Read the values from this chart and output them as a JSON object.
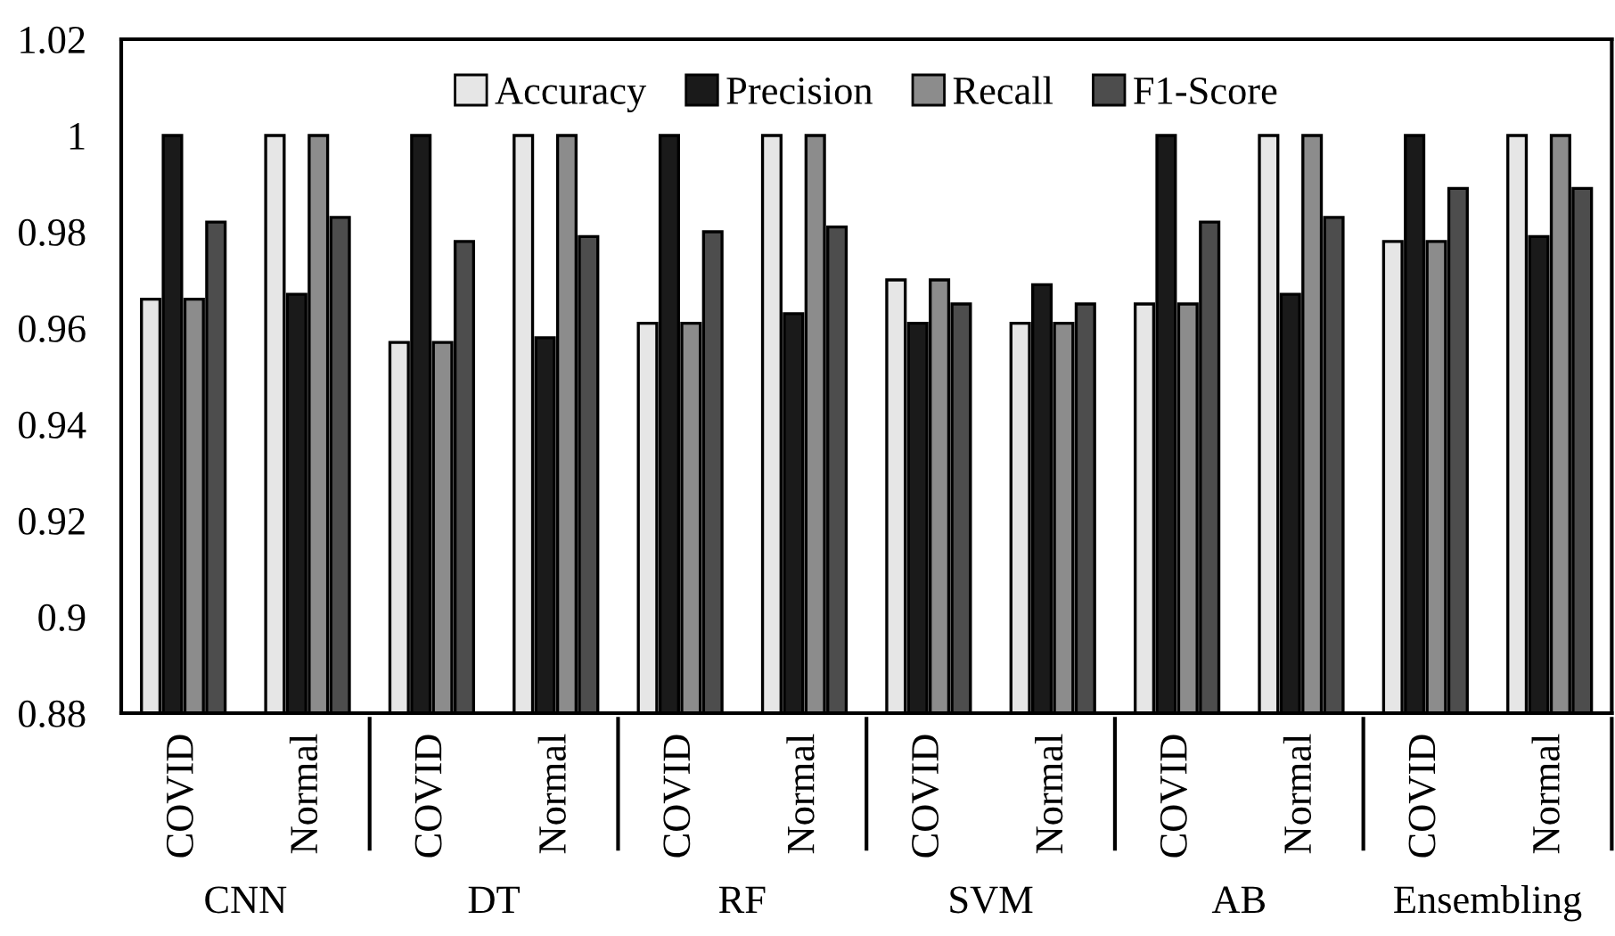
{
  "chart_data": {
    "type": "bar",
    "categories": [
      "COVID",
      "Normal",
      "COVID",
      "Normal",
      "COVID",
      "Normal",
      "COVID",
      "Normal",
      "COVID",
      "Normal",
      "COVID",
      "Normal"
    ],
    "annotations": [
      "CNN",
      "DT",
      "RF",
      "SVM",
      "AB",
      "Ensembling"
    ],
    "series": [
      {
        "name": "Accuracy",
        "color": "#e6e6e6",
        "values": [
          0.966,
          1,
          0.957,
          1,
          0.961,
          1,
          0.97,
          0.961,
          0.965,
          1,
          0.978,
          1
        ]
      },
      {
        "name": "Precision",
        "color": "#1a1a1a",
        "values": [
          1,
          0.967,
          1,
          0.958,
          1,
          0.963,
          0.961,
          0.969,
          1,
          0.967,
          1,
          0.979
        ]
      },
      {
        "name": "Recall",
        "color": "#8c8c8c",
        "values": [
          0.966,
          1,
          0.957,
          1,
          0.961,
          1,
          0.97,
          0.961,
          0.965,
          1,
          0.978,
          1
        ]
      },
      {
        "name": "F1-Score",
        "color": "#4d4d4d",
        "values": [
          0.982,
          0.983,
          0.978,
          0.979,
          0.98,
          0.981,
          0.965,
          0.965,
          0.982,
          0.983,
          0.989,
          0.989
        ]
      }
    ],
    "ylim": [
      0.88,
      1.02
    ],
    "yticks": [
      0.88,
      {
        "value": 0.9,
        "label": "0.9"
      },
      0.92,
      0.94,
      0.96,
      0.98,
      {
        "value": 1,
        "label": "1"
      },
      1.02
    ],
    "grid": false,
    "legend": "top"
  }
}
